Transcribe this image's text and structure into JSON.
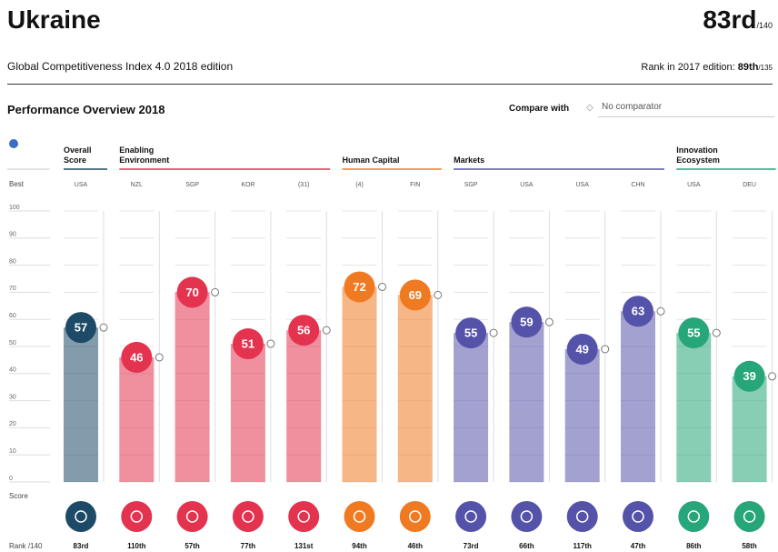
{
  "header": {
    "title": "Ukraine",
    "rank": "83rd",
    "rank_of": "/140",
    "subtitle": "Global Competitiveness Index 4.0 2018 edition",
    "prev_rank_label": "Rank in 2017 edition:",
    "prev_rank": "89th",
    "prev_rank_of": "/135"
  },
  "toolbar": {
    "section_title": "Performance Overview 2018",
    "compare_label": "Compare with",
    "compare_value": "No comparator"
  },
  "chart_data": {
    "type": "bar",
    "best_label": "Best",
    "ylabel": "Score",
    "rank_label": "Rank /140",
    "ylim": [
      0,
      100
    ],
    "yticks": [
      0,
      10,
      20,
      30,
      40,
      50,
      60,
      70,
      80,
      90,
      100
    ],
    "series": [
      {
        "name": "Overall Score",
        "color": "#1d4a66",
        "values": [
          57
        ],
        "best": [
          "USA"
        ],
        "ranks": [
          "83rd"
        ]
      },
      {
        "name": "Enabling Environment",
        "color": "#e3334f",
        "values": [
          46,
          70,
          51,
          56
        ],
        "best": [
          "NZL",
          "SGP",
          "KOR",
          "(31)"
        ],
        "ranks": [
          "110th",
          "57th",
          "77th",
          "131st"
        ]
      },
      {
        "name": "Human Capital",
        "color": "#f07a22",
        "values": [
          72,
          69
        ],
        "best": [
          "(4)",
          "FIN"
        ],
        "ranks": [
          "94th",
          "46th"
        ]
      },
      {
        "name": "Markets",
        "color": "#5553a9",
        "values": [
          55,
          59,
          49,
          63
        ],
        "best": [
          "SGP",
          "USA",
          "USA",
          "CHN"
        ],
        "ranks": [
          "73rd",
          "66th",
          "117th",
          "47th"
        ]
      },
      {
        "name": "Innovation Ecosystem",
        "color": "#27a679",
        "values": [
          55,
          39
        ],
        "best": [
          "USA",
          "DEU"
        ],
        "ranks": [
          "86th",
          "58th"
        ]
      }
    ]
  }
}
